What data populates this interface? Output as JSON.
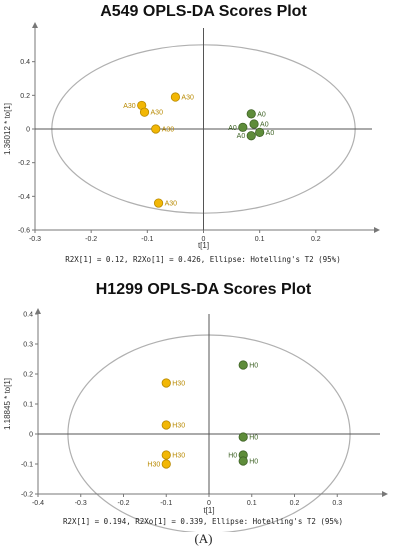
{
  "figure_caption": "(A)",
  "colors": {
    "group_a": "#F2B705",
    "group_b": "#5E8C3A",
    "ellipse": "#b0b0b0",
    "axis": "#777777"
  },
  "chart_data": [
    {
      "type": "scatter",
      "title": "A549  OPLS-DA  Scores Plot",
      "xlabel": "t[1]",
      "ylabel": "1.36012 * to[1]",
      "xlim": [
        -0.3,
        0.3
      ],
      "ylim": [
        -0.6,
        0.6
      ],
      "xticks": [
        -0.3,
        -0.2,
        -0.1,
        0,
        0.1,
        0.2
      ],
      "yticks": [
        -0.6,
        -0.4,
        -0.2,
        0,
        0.2,
        0.4
      ],
      "tick_labels_x": [
        "-0.3",
        "-0.2",
        "-0.1",
        "0",
        "0.1",
        "0.2"
      ],
      "tick_labels_y": [
        "-0.6",
        "-0.4",
        "-0.2",
        "0",
        "0.2",
        "0.4"
      ],
      "stats_text": "R2X[1] = 0.12, R2Xo[1] = 0.426, Ellipse: Hotelling's T2 (95%)",
      "ellipse": {
        "cx": 0,
        "cy": 0,
        "rx": 0.27,
        "ry": 0.5
      },
      "series": [
        {
          "group": "a",
          "points": [
            {
              "x": -0.05,
              "y": 0.19,
              "label": "A30"
            },
            {
              "x": -0.11,
              "y": 0.14,
              "label": "A30"
            },
            {
              "x": -0.105,
              "y": 0.1,
              "label": "A30"
            },
            {
              "x": -0.085,
              "y": 0.0,
              "label": "A30"
            },
            {
              "x": -0.08,
              "y": -0.44,
              "label": "A30"
            }
          ]
        },
        {
          "group": "b",
          "points": [
            {
              "x": 0.085,
              "y": 0.09,
              "label": "A0"
            },
            {
              "x": 0.07,
              "y": 0.01,
              "label": "A0"
            },
            {
              "x": 0.09,
              "y": 0.03,
              "label": "A0"
            },
            {
              "x": 0.1,
              "y": -0.02,
              "label": "A0"
            },
            {
              "x": 0.085,
              "y": -0.04,
              "label": "A0"
            }
          ]
        }
      ],
      "label_sides": {
        "A30": "mixed",
        "A0": "mixed"
      }
    },
    {
      "type": "scatter",
      "title": "H1299  OPLS-DA  Scores Plot",
      "xlabel": "t[1]",
      "ylabel": "1.18845 * to[1]",
      "xlim": [
        -0.4,
        0.4
      ],
      "ylim": [
        -0.2,
        0.4
      ],
      "xticks": [
        -0.4,
        -0.3,
        -0.2,
        -0.1,
        0,
        0.1,
        0.2,
        0.3
      ],
      "yticks": [
        -0.2,
        -0.1,
        0,
        0.1,
        0.2,
        0.3,
        0.4
      ],
      "tick_labels_x": [
        "-0.4",
        "-0.3",
        "-0.2",
        "-0.1",
        "0",
        "0.1",
        "0.2",
        "0.3"
      ],
      "tick_labels_y": [
        "-0.2",
        "-0.1",
        "0",
        "0.1",
        "0.2",
        "0.3",
        "0.4"
      ],
      "stats_text": "R2X[1] = 0.194, R2Xo[1] = 0.339, Ellipse: Hotelling's T2 (95%)",
      "ellipse": {
        "cx": 0,
        "cy": 0,
        "rx": 0.33,
        "ry": 0.33
      },
      "series": [
        {
          "group": "a",
          "points": [
            {
              "x": -0.1,
              "y": 0.17,
              "label": "H30"
            },
            {
              "x": -0.1,
              "y": 0.03,
              "label": "H30"
            },
            {
              "x": -0.1,
              "y": -0.07,
              "label": "H30"
            },
            {
              "x": -0.1,
              "y": -0.1,
              "label": "H30"
            }
          ]
        },
        {
          "group": "b",
          "points": [
            {
              "x": 0.08,
              "y": 0.23,
              "label": "H0"
            },
            {
              "x": 0.08,
              "y": -0.01,
              "label": "H0"
            },
            {
              "x": 0.08,
              "y": -0.07,
              "label": "H0"
            },
            {
              "x": 0.08,
              "y": -0.09,
              "label": "H0"
            }
          ]
        }
      ]
    }
  ]
}
